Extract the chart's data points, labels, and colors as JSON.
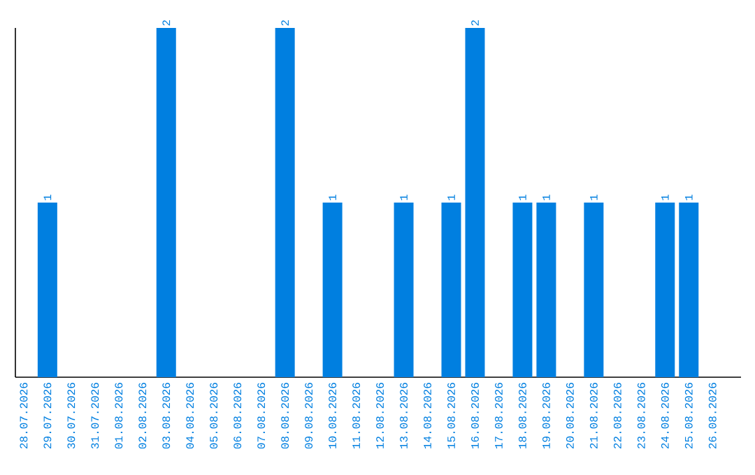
{
  "chart_data": {
    "type": "bar",
    "categories": [
      "28.07.2026",
      "29.07.2026",
      "30.07.2026",
      "31.07.2026",
      "01.08.2026",
      "02.08.2026",
      "03.08.2026",
      "04.08.2026",
      "05.08.2026",
      "06.08.2026",
      "07.08.2026",
      "08.08.2026",
      "09.08.2026",
      "10.08.2026",
      "11.08.2026",
      "12.08.2026",
      "13.08.2026",
      "14.08.2026",
      "15.08.2026",
      "16.08.2026",
      "17.08.2026",
      "18.08.2026",
      "19.08.2026",
      "20.08.2026",
      "21.08.2026",
      "22.08.2026",
      "23.08.2026",
      "24.08.2026",
      "25.08.2026",
      "26.08.2026"
    ],
    "values": [
      0,
      1,
      0,
      0,
      0,
      0,
      2,
      0,
      0,
      0,
      0,
      2,
      0,
      1,
      0,
      0,
      1,
      0,
      1,
      2,
      0,
      1,
      1,
      0,
      1,
      0,
      0,
      1,
      1,
      0
    ],
    "value_labels": [
      null,
      "1",
      null,
      null,
      null,
      null,
      "2",
      null,
      null,
      null,
      null,
      "2",
      null,
      "1",
      null,
      null,
      "1",
      null,
      "1",
      "2",
      null,
      "1",
      "1",
      null,
      "1",
      null,
      null,
      "1",
      "1",
      null
    ],
    "color": "#007fe0",
    "ylim": [
      0,
      2
    ]
  }
}
